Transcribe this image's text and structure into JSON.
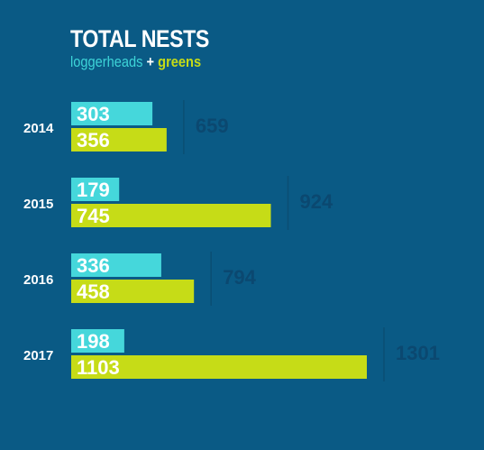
{
  "chart_data": {
    "type": "bar",
    "title": "TOTAL NESTS",
    "subtitle": {
      "part1": "loggerheads",
      "sep": "+",
      "part2": "greens"
    },
    "categories": [
      "2014",
      "2015",
      "2016",
      "2017"
    ],
    "series": [
      {
        "name": "loggerheads",
        "values": [
          303,
          179,
          336,
          198
        ],
        "color": "#45d7db"
      },
      {
        "name": "greens",
        "values": [
          356,
          745,
          458,
          1103
        ],
        "color": "#c6dc17"
      }
    ],
    "totals": [
      659,
      924,
      794,
      1301
    ],
    "orientation": "horizontal",
    "grid": false,
    "xlim": [
      0,
      1103
    ]
  }
}
